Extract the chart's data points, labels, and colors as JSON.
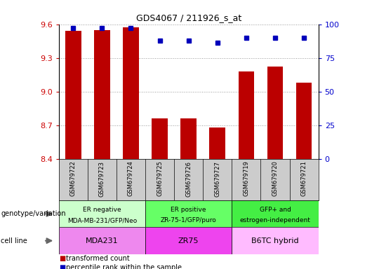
{
  "title": "GDS4067 / 211926_s_at",
  "samples": [
    "GSM679722",
    "GSM679723",
    "GSM679724",
    "GSM679725",
    "GSM679726",
    "GSM679727",
    "GSM679719",
    "GSM679720",
    "GSM679721"
  ],
  "transformed_counts": [
    9.54,
    9.55,
    9.57,
    8.76,
    8.76,
    8.68,
    9.18,
    9.22,
    9.08
  ],
  "percentile_ranks": [
    97,
    97,
    97,
    88,
    88,
    86,
    90,
    90,
    90
  ],
  "ylim_left": [
    8.4,
    9.6
  ],
  "ylim_right": [
    0,
    100
  ],
  "yticks_left": [
    8.4,
    8.7,
    9.0,
    9.3,
    9.6
  ],
  "yticks_right": [
    0,
    25,
    50,
    75,
    100
  ],
  "bar_color": "#bb0000",
  "dot_color": "#0000bb",
  "bar_width": 0.55,
  "genotype_groups": [
    {
      "label": "ER negative\nMDA-MB-231/GFP/Neo",
      "start": 0,
      "end": 3,
      "color": "#ccffcc"
    },
    {
      "label": "ER positive\nZR-75-1/GFP/puro",
      "start": 3,
      "end": 6,
      "color": "#66ff66"
    },
    {
      "label": "GFP+ and\nestrogen-independent",
      "start": 6,
      "end": 9,
      "color": "#44ee44"
    }
  ],
  "cell_line_groups": [
    {
      "label": "MDA231",
      "start": 0,
      "end": 3,
      "color": "#ee88ee"
    },
    {
      "label": "ZR75",
      "start": 3,
      "end": 6,
      "color": "#ee44ee"
    },
    {
      "label": "B6TC hybrid",
      "start": 6,
      "end": 9,
      "color": "#ffbbff"
    }
  ],
  "legend_red_label": "transformed count",
  "legend_blue_label": "percentile rank within the sample",
  "left_tick_color": "#cc0000",
  "right_tick_color": "#0000cc",
  "grid_color": "#999999",
  "bg_color": "#ffffff",
  "tick_area_color": "#cccccc",
  "left_side_label_geno": "genotype/variation",
  "left_side_label_cell": "cell line"
}
